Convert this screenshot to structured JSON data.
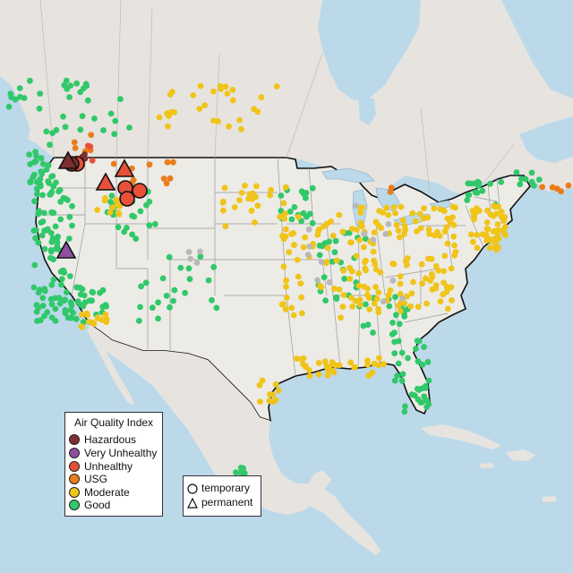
{
  "colors": {
    "water": "#bcd9ea",
    "land": "#ecebe6",
    "canada": "#e7e4df",
    "terrain_snow": "#e9dcdc",
    "border_country": "#111111",
    "border_state": "#9a9a9a",
    "hazardous": "#7e2d30",
    "very_unhealthy": "#8f4fa0",
    "unhealthy": "#e8503a",
    "usg": "#ea7d1a",
    "moderate": "#f0c419",
    "good": "#31c86a",
    "no_data": "#b9b9b9"
  },
  "legend": {
    "title": "Air Quality Index",
    "items": [
      {
        "label": "Hazardous",
        "category": "hazardous"
      },
      {
        "label": "Very Unhealthy",
        "category": "very_unhealthy"
      },
      {
        "label": "Unhealthy",
        "category": "unhealthy"
      },
      {
        "label": "USG",
        "category": "usg"
      },
      {
        "label": "Moderate",
        "category": "moderate"
      },
      {
        "label": "Good",
        "category": "good"
      }
    ],
    "monitor_types": [
      {
        "label": "temporary",
        "shape": "circle"
      },
      {
        "label": "permanent",
        "shape": "triangle"
      }
    ]
  }
}
